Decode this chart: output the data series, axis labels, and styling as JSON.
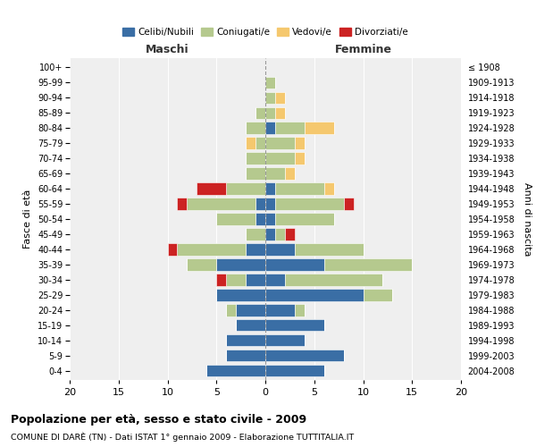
{
  "age_groups": [
    "0-4",
    "5-9",
    "10-14",
    "15-19",
    "20-24",
    "25-29",
    "30-34",
    "35-39",
    "40-44",
    "45-49",
    "50-54",
    "55-59",
    "60-64",
    "65-69",
    "70-74",
    "75-79",
    "80-84",
    "85-89",
    "90-94",
    "95-99",
    "100+"
  ],
  "birth_years": [
    "2004-2008",
    "1999-2003",
    "1994-1998",
    "1989-1993",
    "1984-1988",
    "1979-1983",
    "1974-1978",
    "1969-1973",
    "1964-1968",
    "1959-1963",
    "1954-1958",
    "1949-1953",
    "1944-1948",
    "1939-1943",
    "1934-1938",
    "1929-1933",
    "1924-1928",
    "1919-1923",
    "1914-1918",
    "1909-1913",
    "≤ 1908"
  ],
  "colors": {
    "celibi": "#3a6ea5",
    "coniugati": "#b5c98e",
    "vedovi": "#f5c86e",
    "divorziati": "#cc2222"
  },
  "maschi": {
    "celibi": [
      6,
      4,
      4,
      3,
      3,
      5,
      2,
      5,
      2,
      0,
      1,
      1,
      0,
      0,
      0,
      0,
      0,
      0,
      0,
      0,
      0
    ],
    "coniugati": [
      0,
      0,
      0,
      0,
      1,
      0,
      2,
      3,
      7,
      2,
      4,
      7,
      4,
      2,
      2,
      1,
      2,
      1,
      0,
      0,
      0
    ],
    "vedovi": [
      0,
      0,
      0,
      0,
      0,
      0,
      0,
      0,
      0,
      0,
      0,
      0,
      0,
      0,
      0,
      1,
      0,
      0,
      0,
      0,
      0
    ],
    "divorziati": [
      0,
      0,
      0,
      0,
      0,
      0,
      1,
      0,
      1,
      0,
      0,
      1,
      3,
      0,
      0,
      0,
      0,
      0,
      0,
      0,
      0
    ]
  },
  "femmine": {
    "celibi": [
      6,
      8,
      4,
      6,
      3,
      10,
      2,
      6,
      3,
      1,
      1,
      1,
      1,
      0,
      0,
      0,
      1,
      0,
      0,
      0,
      0
    ],
    "coniugati": [
      0,
      0,
      0,
      0,
      1,
      3,
      10,
      9,
      7,
      1,
      6,
      7,
      5,
      2,
      3,
      3,
      3,
      1,
      1,
      1,
      0
    ],
    "vedovi": [
      0,
      0,
      0,
      0,
      0,
      0,
      0,
      0,
      0,
      0,
      0,
      0,
      1,
      1,
      1,
      1,
      3,
      1,
      1,
      0,
      0
    ],
    "divorziati": [
      0,
      0,
      0,
      0,
      0,
      0,
      0,
      0,
      0,
      1,
      0,
      1,
      0,
      0,
      0,
      0,
      0,
      0,
      0,
      0,
      0
    ]
  },
  "xlim": 20,
  "title": "Popolazione per età, sesso e stato civile - 2009",
  "subtitle": "COMUNE DI DARÈ (TN) - Dati ISTAT 1° gennaio 2009 - Elaborazione TUTTITALIA.IT",
  "ylabel_left": "Fasce di età",
  "ylabel_right": "Anni di nascita",
  "label_maschi": "Maschi",
  "label_femmine": "Femmine",
  "legend_labels": [
    "Celibi/Nubili",
    "Coniugati/e",
    "Vedovi/e",
    "Divorziati/e"
  ],
  "background_color": "#ffffff",
  "axes_bg": "#efefef"
}
